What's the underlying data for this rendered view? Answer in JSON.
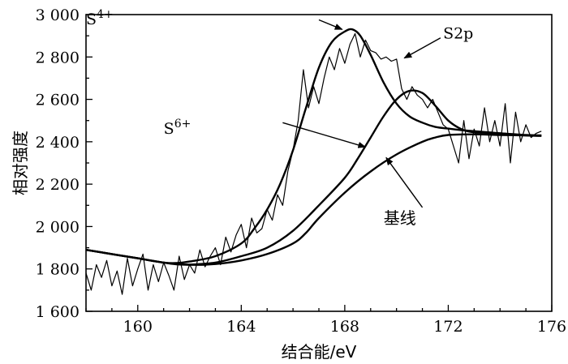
{
  "chart_data": {
    "type": "line",
    "xlabel": "结合能/eV",
    "ylabel": "相对强度",
    "xlim": [
      158,
      176
    ],
    "ylim": [
      1600,
      3000
    ],
    "xticks": [
      160,
      164,
      168,
      172,
      176
    ],
    "yticks": [
      1600,
      1800,
      2000,
      2200,
      2400,
      2600,
      2800,
      3000
    ],
    "ytick_labels": [
      "1 600",
      "1 800",
      "2 000",
      "2 200",
      "2 400",
      "2 600",
      "2 800",
      "3 000"
    ],
    "grid": false,
    "series": [
      {
        "name": "S2p",
        "style": "thin-noisy",
        "x": [
          158.0,
          158.2,
          158.4,
          158.6,
          158.8,
          159.0,
          159.2,
          159.4,
          159.6,
          159.8,
          160.0,
          160.2,
          160.4,
          160.6,
          160.8,
          161.0,
          161.2,
          161.4,
          161.6,
          161.8,
          162.0,
          162.2,
          162.4,
          162.6,
          162.8,
          163.0,
          163.2,
          163.4,
          163.6,
          163.8,
          164.0,
          164.2,
          164.4,
          164.6,
          164.8,
          165.0,
          165.2,
          165.4,
          165.6,
          165.8,
          166.0,
          166.2,
          166.4,
          166.6,
          166.8,
          167.0,
          167.2,
          167.4,
          167.6,
          167.8,
          168.0,
          168.2,
          168.4,
          168.6,
          168.8,
          169.0,
          169.2,
          169.4,
          169.6,
          169.8,
          170.0,
          170.2,
          170.4,
          170.6,
          170.8,
          171.0,
          171.2,
          171.4,
          171.6,
          171.8,
          172.0,
          172.2,
          172.4,
          172.6,
          172.8,
          173.0,
          173.2,
          173.4,
          173.6,
          173.8,
          174.0,
          174.2,
          174.4,
          174.6,
          174.8,
          175.0,
          175.2,
          175.4,
          175.6
        ],
        "y": [
          1780,
          1700,
          1820,
          1760,
          1840,
          1720,
          1790,
          1680,
          1850,
          1720,
          1800,
          1870,
          1700,
          1820,
          1740,
          1830,
          1770,
          1700,
          1860,
          1750,
          1820,
          1780,
          1890,
          1810,
          1860,
          1900,
          1820,
          1950,
          1880,
          1960,
          2010,
          1900,
          2040,
          1970,
          1990,
          2080,
          2030,
          2150,
          2100,
          2260,
          2360,
          2500,
          2740,
          2560,
          2660,
          2580,
          2700,
          2800,
          2740,
          2840,
          2770,
          2860,
          2910,
          2800,
          2880,
          2830,
          2820,
          2790,
          2800,
          2780,
          2790,
          2650,
          2600,
          2660,
          2620,
          2600,
          2560,
          2600,
          2540,
          2480,
          2460,
          2380,
          2300,
          2500,
          2320,
          2460,
          2380,
          2560,
          2400,
          2500,
          2380,
          2580,
          2300,
          2540,
          2400,
          2480,
          2420,
          2440,
          2450
        ]
      },
      {
        "name": "S4+",
        "style": "smooth",
        "x": [
          158.0,
          159.0,
          160.0,
          161.0,
          161.5,
          162.0,
          163.0,
          164.0,
          164.5,
          165.0,
          165.5,
          166.0,
          166.5,
          167.0,
          167.5,
          168.0,
          168.3,
          168.6,
          169.0,
          169.5,
          170.0,
          170.5,
          171.0,
          171.5,
          172.0,
          172.5,
          173.0,
          174.0,
          175.0,
          175.6
        ],
        "y": [
          1890,
          1870,
          1850,
          1830,
          1828,
          1835,
          1860,
          1920,
          1990,
          2080,
          2200,
          2360,
          2560,
          2750,
          2870,
          2920,
          2930,
          2900,
          2810,
          2680,
          2580,
          2520,
          2490,
          2470,
          2462,
          2455,
          2450,
          2440,
          2430,
          2428
        ]
      },
      {
        "name": "S6+",
        "style": "smooth",
        "x": [
          158.0,
          159.0,
          160.0,
          161.0,
          161.5,
          162.0,
          163.0,
          164.0,
          165.0,
          166.0,
          167.0,
          168.0,
          168.5,
          169.0,
          169.5,
          170.0,
          170.5,
          171.0,
          171.5,
          172.0,
          172.5,
          173.0,
          174.0,
          175.0,
          175.6
        ],
        "y": [
          1890,
          1870,
          1850,
          1830,
          1822,
          1820,
          1830,
          1860,
          1900,
          1980,
          2100,
          2230,
          2320,
          2420,
          2520,
          2600,
          2640,
          2630,
          2570,
          2500,
          2460,
          2445,
          2440,
          2432,
          2430
        ]
      },
      {
        "name": "基线",
        "style": "smooth",
        "x": [
          158.0,
          159.0,
          160.0,
          161.0,
          162.0,
          163.0,
          164.0,
          165.0,
          166.0,
          166.5,
          167.0,
          168.0,
          169.0,
          170.0,
          171.0,
          171.5,
          172.0,
          173.0,
          174.0,
          175.0,
          175.6
        ],
        "y": [
          1890,
          1870,
          1850,
          1830,
          1820,
          1823,
          1840,
          1870,
          1920,
          1970,
          2040,
          2160,
          2260,
          2340,
          2400,
          2420,
          2432,
          2435,
          2432,
          2430,
          2428
        ]
      }
    ],
    "annotations": [
      {
        "label_base": "S",
        "label_sup": "4+",
        "text_x": 158.0,
        "text_y": 2955,
        "arrow_from": [
          167.0,
          2975
        ],
        "arrow_to": [
          167.9,
          2930
        ],
        "label_cjk": false
      },
      {
        "label_base": "S2p",
        "label_sup": "",
        "text_x": 171.8,
        "text_y": 2888,
        "arrow_from": [
          171.7,
          2890
        ],
        "arrow_to": [
          170.3,
          2795
        ],
        "label_cjk": false
      },
      {
        "label_base": "S",
        "label_sup": "6+",
        "text_x": 161.0,
        "text_y": 2437,
        "arrow_from": [
          165.6,
          2490
        ],
        "arrow_to": [
          168.8,
          2375
        ],
        "label_cjk": false
      },
      {
        "label_base": "基线",
        "label_sup": "",
        "text_x": 169.5,
        "text_y": 2013,
        "arrow_from": [
          171.0,
          2090
        ],
        "arrow_to": [
          169.6,
          2325
        ],
        "label_cjk": true
      }
    ]
  }
}
